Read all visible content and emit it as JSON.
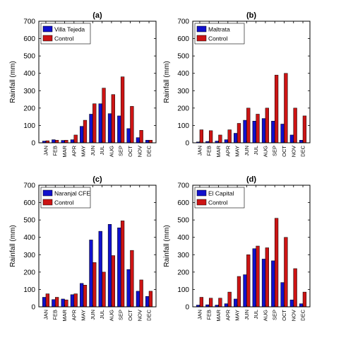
{
  "colors": {
    "station": "#1010cc",
    "control": "#cc1414",
    "axis": "#000000"
  },
  "chart_data": [
    {
      "type": "bar",
      "title": "(a)",
      "ylabel": "Rainfall (mm)",
      "ylim": [
        0,
        700
      ],
      "yticks": [
        0,
        100,
        200,
        300,
        400,
        500,
        600,
        700
      ],
      "grid": false,
      "legend_position": "top-left",
      "categories": [
        "JAN",
        "FEB",
        "MAR",
        "APR",
        "MAY",
        "JUN",
        "JUL",
        "AUG",
        "SEP",
        "OCT",
        "NOV",
        "DEC"
      ],
      "series": [
        {
          "name": "Villa Tejeda",
          "values": [
            10,
            18,
            14,
            18,
            95,
            165,
            225,
            168,
            155,
            82,
            30,
            15
          ]
        },
        {
          "name": "Control",
          "values": [
            12,
            15,
            15,
            45,
            130,
            225,
            315,
            278,
            380,
            210,
            72,
            15
          ]
        }
      ]
    },
    {
      "type": "bar",
      "title": "(b)",
      "ylabel": "Rainfall (mm)",
      "ylim": [
        0,
        700
      ],
      "yticks": [
        0,
        100,
        200,
        300,
        400,
        500,
        600,
        700
      ],
      "grid": false,
      "legend_position": "top-left",
      "categories": [
        "JAN",
        "FEB",
        "MAR",
        "APR",
        "MAY",
        "JUN",
        "JUL",
        "AUG",
        "SEP",
        "OCT",
        "NOV",
        "DEC"
      ],
      "series": [
        {
          "name": "Maltrata",
          "values": [
            5,
            8,
            10,
            18,
            55,
            130,
            125,
            140,
            125,
            108,
            45,
            15
          ]
        },
        {
          "name": "Control",
          "values": [
            75,
            70,
            45,
            75,
            112,
            200,
            165,
            200,
            390,
            400,
            200,
            155
          ]
        }
      ]
    },
    {
      "type": "bar",
      "title": "(c)",
      "ylabel": "Rainfall (mm)",
      "ylim": [
        0,
        700
      ],
      "yticks": [
        0,
        100,
        200,
        300,
        400,
        500,
        600,
        700
      ],
      "grid": false,
      "legend_position": "top-left",
      "categories": [
        "JAN",
        "FEB",
        "MAR",
        "APR",
        "MAY",
        "JUN",
        "JUL",
        "AUG",
        "SEP",
        "OCT",
        "NOV",
        "DEC"
      ],
      "series": [
        {
          "name": "Naranjal CFE",
          "values": [
            55,
            42,
            45,
            70,
            135,
            385,
            435,
            475,
            455,
            215,
            90,
            60
          ]
        },
        {
          "name": "Control",
          "values": [
            75,
            55,
            40,
            75,
            125,
            255,
            200,
            295,
            495,
            325,
            155,
            90
          ]
        }
      ]
    },
    {
      "type": "bar",
      "title": "(d)",
      "ylabel": "Rainfall (mm)",
      "ylim": [
        0,
        700
      ],
      "yticks": [
        0,
        100,
        200,
        300,
        400,
        500,
        600,
        700
      ],
      "grid": false,
      "legend_position": "top-left",
      "categories": [
        "JAN",
        "FEB",
        "MAR",
        "APR",
        "MAY",
        "JUN",
        "JUL",
        "AUG",
        "SEP",
        "OCT",
        "NOV",
        "DEC"
      ],
      "series": [
        {
          "name": "El Capital",
          "values": [
            10,
            12,
            10,
            18,
            45,
            185,
            335,
            275,
            265,
            140,
            40,
            18
          ]
        },
        {
          "name": "Control",
          "values": [
            55,
            50,
            50,
            85,
            175,
            300,
            350,
            340,
            510,
            400,
            220,
            85
          ]
        }
      ]
    }
  ]
}
